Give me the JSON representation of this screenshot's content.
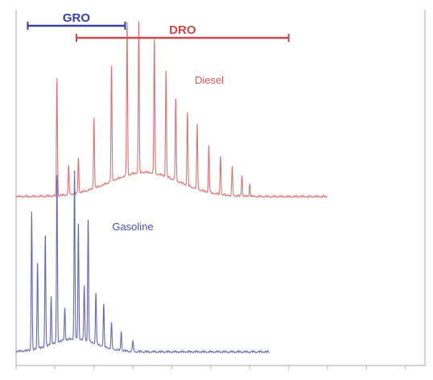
{
  "chart_data": {
    "type": "line",
    "title": "",
    "xlabel": "",
    "ylabel": "",
    "x_unit": "min",
    "xlim": [
      0,
      10.5
    ],
    "ylim": [
      0,
      1.1
    ],
    "axis_color": "#b7b7b7",
    "grid": false,
    "ranges": [
      {
        "name": "GRO",
        "color": "#3b3fa0",
        "x": [
          0.3,
          2.8
        ]
      },
      {
        "name": "DRO",
        "color": "#c94848",
        "x": [
          1.55,
          7.0
        ]
      }
    ],
    "series": [
      {
        "name": "Diesel",
        "color": "#d25a5a",
        "baseline": 0.52,
        "hump": {
          "center": 3.3,
          "width": 1.25,
          "height": 0.075
        },
        "x_end": 8.0,
        "peaks": [
          {
            "x": 1.05,
            "y": 0.885
          },
          {
            "x": 1.35,
            "y": 0.61
          },
          {
            "x": 1.6,
            "y": 0.63
          },
          {
            "x": 2.0,
            "y": 0.74
          },
          {
            "x": 2.45,
            "y": 0.875
          },
          {
            "x": 2.85,
            "y": 0.995
          },
          {
            "x": 3.15,
            "y": 0.99
          },
          {
            "x": 3.55,
            "y": 0.94
          },
          {
            "x": 3.85,
            "y": 0.85
          },
          {
            "x": 4.1,
            "y": 0.775
          },
          {
            "x": 4.4,
            "y": 0.745
          },
          {
            "x": 4.65,
            "y": 0.72
          },
          {
            "x": 4.95,
            "y": 0.665
          },
          {
            "x": 5.25,
            "y": 0.64
          },
          {
            "x": 5.55,
            "y": 0.61
          },
          {
            "x": 5.8,
            "y": 0.585
          },
          {
            "x": 6.0,
            "y": 0.56
          }
        ]
      },
      {
        "name": "Gasoline",
        "color": "#4a4ea8",
        "baseline": 0.04,
        "hump": {
          "center": 1.5,
          "width": 0.8,
          "height": 0.04
        },
        "x_end": 6.5,
        "peaks": [
          {
            "x": 0.4,
            "y": 0.47
          },
          {
            "x": 0.55,
            "y": 0.31
          },
          {
            "x": 0.75,
            "y": 0.39
          },
          {
            "x": 0.9,
            "y": 0.19
          },
          {
            "x": 1.05,
            "y": 0.56
          },
          {
            "x": 1.25,
            "y": 0.14
          },
          {
            "x": 1.5,
            "y": 0.56
          },
          {
            "x": 1.6,
            "y": 0.4
          },
          {
            "x": 1.75,
            "y": 0.21
          },
          {
            "x": 1.85,
            "y": 0.42
          },
          {
            "x": 2.05,
            "y": 0.2
          },
          {
            "x": 2.25,
            "y": 0.17
          },
          {
            "x": 2.45,
            "y": 0.12
          },
          {
            "x": 2.7,
            "y": 0.1
          },
          {
            "x": 3.0,
            "y": 0.075
          }
        ]
      }
    ]
  }
}
